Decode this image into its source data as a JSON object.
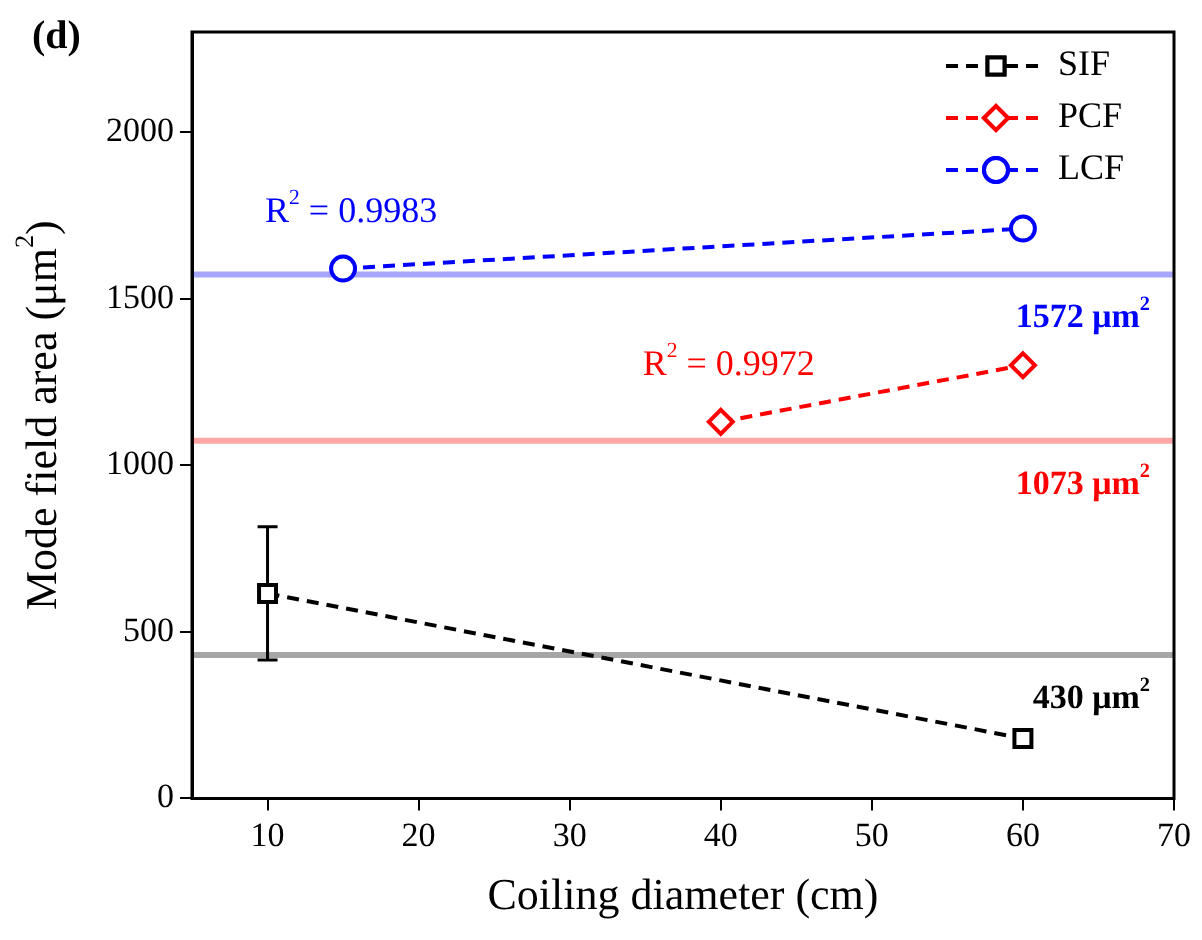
{
  "chart_data": {
    "type": "line",
    "title": "(d)",
    "xlabel": "Coiling diameter (cm)",
    "ylabel": "Mode field area (μm$^{2}$)",
    "xlim": [
      5,
      70
    ],
    "xticks": [
      10,
      20,
      30,
      40,
      50,
      60,
      70
    ],
    "ylim": [
      0,
      2300
    ],
    "yticks": [
      0,
      500,
      1000,
      1500,
      2000
    ],
    "series": [
      {
        "name": "SIF",
        "color": "#000000",
        "marker": "square",
        "x": [
          10,
          60
        ],
        "values": [
          615,
          180
        ],
        "errors": [
          200,
          null
        ]
      },
      {
        "name": "PCF",
        "color": "#ff0000",
        "marker": "diamond",
        "x": [
          40,
          60
        ],
        "values": [
          1130,
          1300
        ]
      },
      {
        "name": "LCF",
        "color": "#0000ff",
        "marker": "circle",
        "x": [
          15,
          60
        ],
        "values": [
          1590,
          1710
        ]
      }
    ],
    "ref_lines": [
      {
        "axis": "y",
        "value": 430,
        "label": "430 μm$^{2}$",
        "color": "#000000"
      },
      {
        "axis": "y",
        "value": 1073,
        "label": "1073 μm$^{2}$",
        "color": "#ff0000"
      },
      {
        "axis": "y",
        "value": 1572,
        "label": "1572 μm$^{2}$",
        "color": "#0000ff"
      }
    ],
    "annotations": [
      "R$^{2}$ = 0.9983",
      "R$^{2}$ = 0.9972"
    ],
    "line_style": "dashed",
    "grid": false,
    "legend": "top right"
  }
}
